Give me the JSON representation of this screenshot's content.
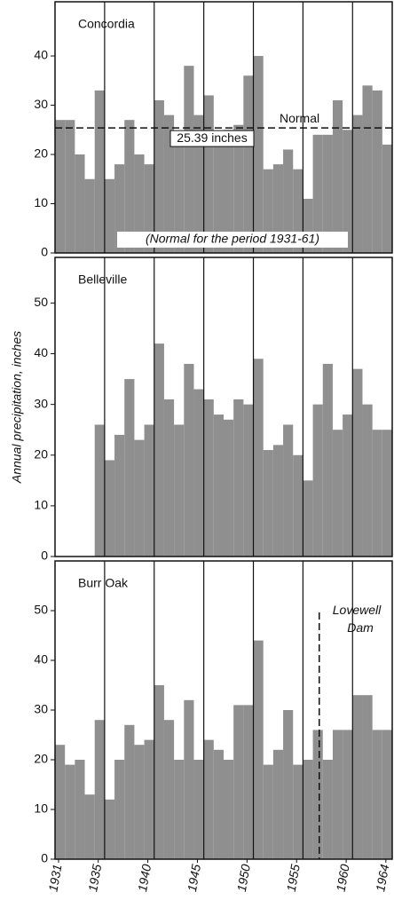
{
  "chart_data": [
    {
      "type": "bar",
      "title": "Concordia",
      "color": "#8f8f8f",
      "x": [
        1931,
        1932,
        1933,
        1934,
        1935,
        1936,
        1937,
        1938,
        1939,
        1940,
        1941,
        1942,
        1943,
        1944,
        1945,
        1946,
        1947,
        1948,
        1949,
        1950,
        1951,
        1952,
        1953,
        1954,
        1955,
        1956,
        1957,
        1958,
        1959,
        1960,
        1961,
        1962,
        1963,
        1964
      ],
      "values": [
        27,
        27,
        20,
        15,
        33,
        15,
        18,
        27,
        20,
        18,
        31,
        28,
        24,
        38,
        28,
        32,
        24,
        25,
        26,
        36,
        40,
        17,
        18,
        21,
        17,
        11,
        24,
        24,
        31,
        25,
        28,
        34,
        33,
        22
      ],
      "ylim": [
        0,
        51
      ],
      "yticks": [
        0,
        10,
        20,
        30,
        40
      ],
      "normal": 25.39,
      "normal_label": "Normal",
      "normal_value_label": "25.39 inches",
      "annotation": "(Normal for the period 1931-61)"
    },
    {
      "type": "bar",
      "title": "Belleville",
      "color": "#8f8f8f",
      "ylabel": "Annual precipitation, inches",
      "x": [
        1931,
        1932,
        1933,
        1934,
        1935,
        1936,
        1937,
        1938,
        1939,
        1940,
        1941,
        1942,
        1943,
        1944,
        1945,
        1946,
        1947,
        1948,
        1949,
        1950,
        1951,
        1952,
        1953,
        1954,
        1955,
        1956,
        1957,
        1958,
        1959,
        1960,
        1961,
        1962,
        1963,
        1964
      ],
      "values": [
        null,
        null,
        null,
        null,
        26,
        19,
        24,
        35,
        23,
        26,
        42,
        31,
        26,
        38,
        33,
        31,
        28,
        27,
        31,
        30,
        39,
        21,
        22,
        26,
        20,
        15,
        30,
        38,
        25,
        28,
        37,
        30,
        25,
        25
      ],
      "ylim": [
        0,
        59
      ],
      "yticks": [
        0,
        10,
        20,
        30,
        40,
        50
      ]
    },
    {
      "type": "bar",
      "title": "Burr Oak",
      "color": "#8f8f8f",
      "annotation": "Lovewell Dam",
      "x": [
        1931,
        1932,
        1933,
        1934,
        1935,
        1936,
        1937,
        1938,
        1939,
        1940,
        1941,
        1942,
        1943,
        1944,
        1945,
        1946,
        1947,
        1948,
        1949,
        1950,
        1951,
        1952,
        1953,
        1954,
        1955,
        1956,
        1957,
        1958,
        1959,
        1960,
        1961,
        1962,
        1963,
        1964
      ],
      "values": [
        23,
        19,
        20,
        13,
        28,
        12,
        20,
        27,
        23,
        24,
        35,
        28,
        20,
        32,
        20,
        24,
        22,
        20,
        31,
        31,
        44,
        19,
        22,
        30,
        19,
        20,
        26,
        20,
        26,
        26,
        33,
        33,
        26,
        26
      ],
      "ylim": [
        0,
        60
      ],
      "yticks": [
        0,
        10,
        20,
        30,
        40,
        50
      ],
      "xticks": [
        1931,
        1935,
        1940,
        1945,
        1950,
        1955,
        1960,
        1964
      ]
    }
  ]
}
